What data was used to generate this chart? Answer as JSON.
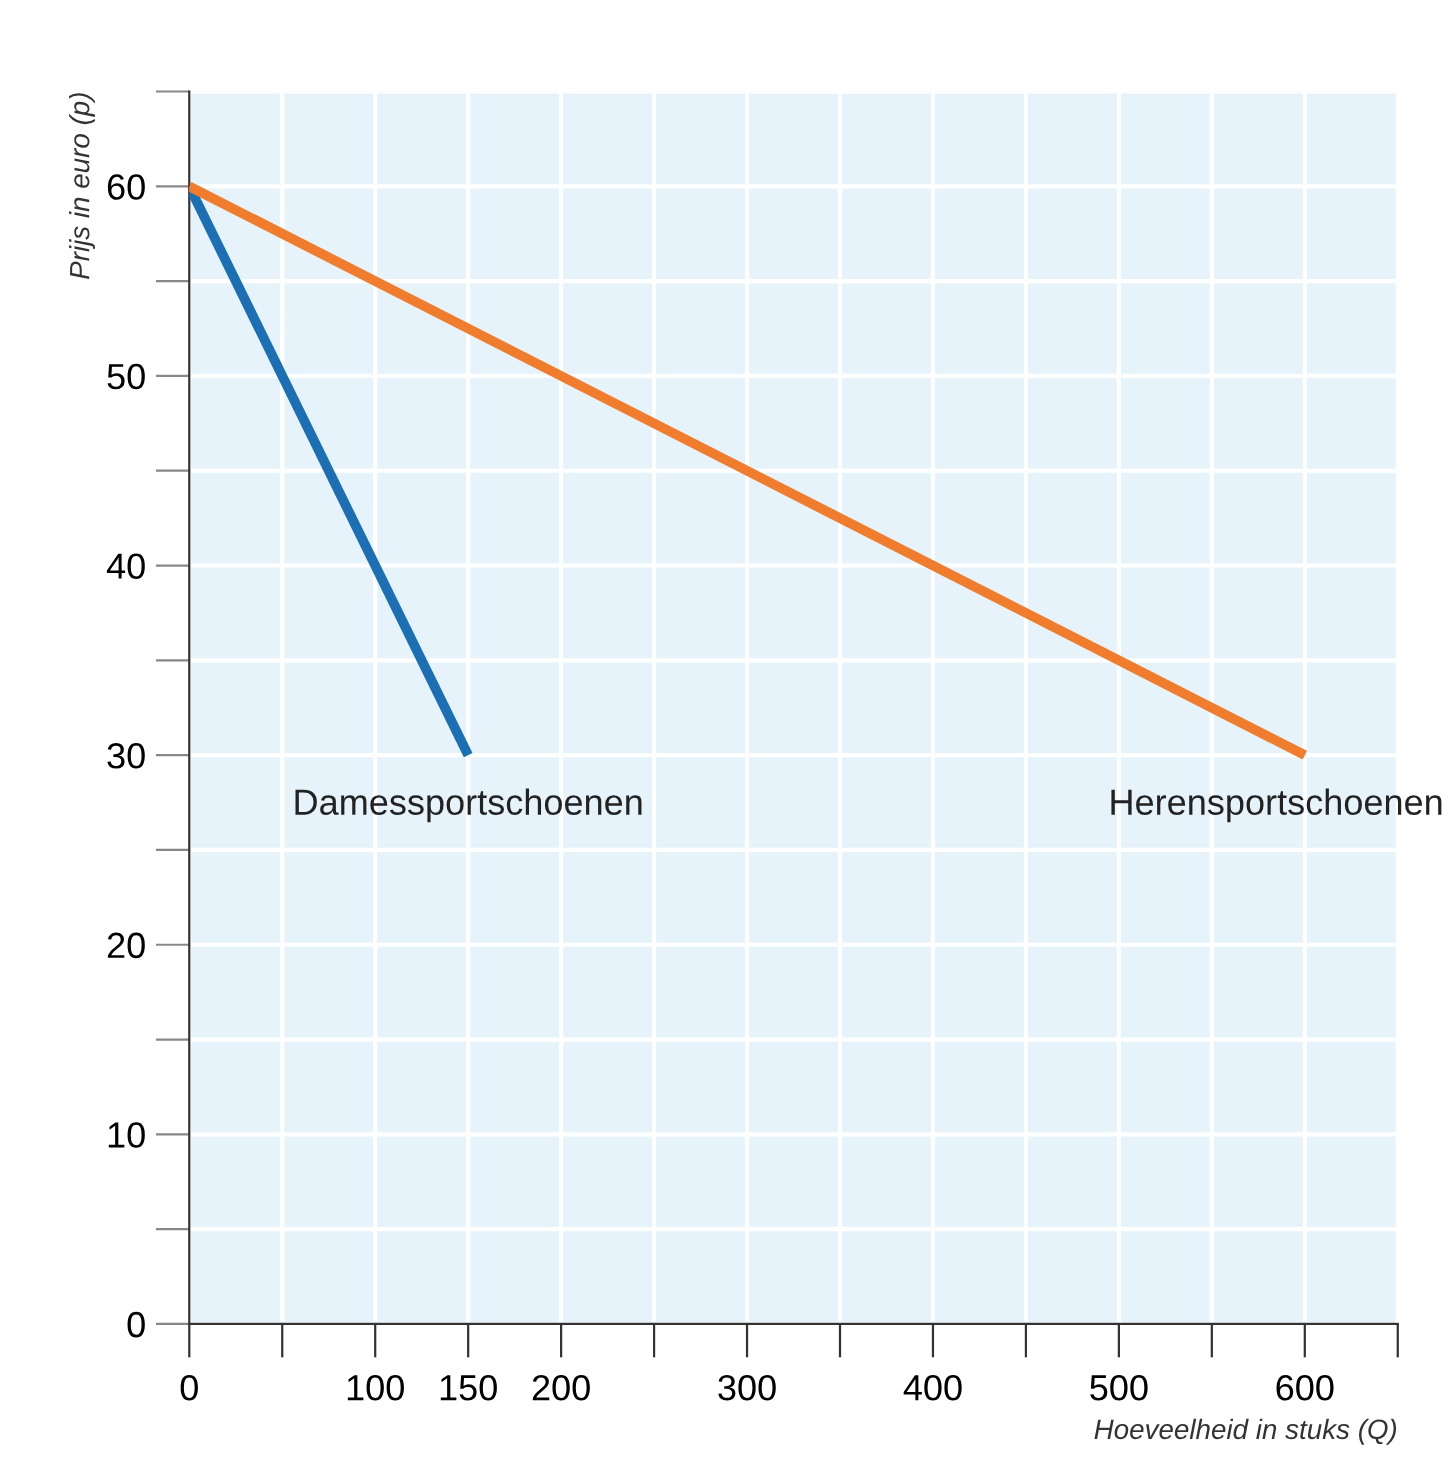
{
  "chart_data": {
    "type": "line",
    "xlabel": "Hoeveelheid in stuks (Q)",
    "ylabel": "Prijs in euro (p)",
    "series": [
      {
        "name": "Damessportschoenen",
        "color": "#1c6fb3",
        "x": [
          0,
          150
        ],
        "values": [
          60,
          30
        ]
      },
      {
        "name": "Herensportschoenen",
        "color": "#ef7d2d",
        "x": [
          0,
          600
        ],
        "values": [
          60,
          30
        ]
      }
    ],
    "xlim": [
      0,
      650
    ],
    "ylim": [
      0,
      65
    ],
    "xticks": [
      0,
      {
        "value": 50,
        "label": null
      },
      100,
      150,
      200,
      {
        "value": 250,
        "label": null
      },
      300,
      {
        "value": 350,
        "label": null
      },
      400,
      {
        "value": 450,
        "label": null
      },
      500,
      {
        "value": 550,
        "label": null
      },
      600,
      {
        "value": 650,
        "label": null
      }
    ],
    "yticks": [
      0,
      {
        "value": 5,
        "label": null
      },
      10,
      {
        "value": 15,
        "label": null
      },
      20,
      {
        "value": 25,
        "label": null
      },
      30,
      {
        "value": 35,
        "label": null
      },
      40,
      {
        "value": 45,
        "label": null
      },
      50,
      {
        "value": 55,
        "label": null
      },
      60,
      {
        "value": 65,
        "label": null
      }
    ],
    "grid": true,
    "legend": false,
    "marker": "none",
    "line_style": "solid"
  }
}
